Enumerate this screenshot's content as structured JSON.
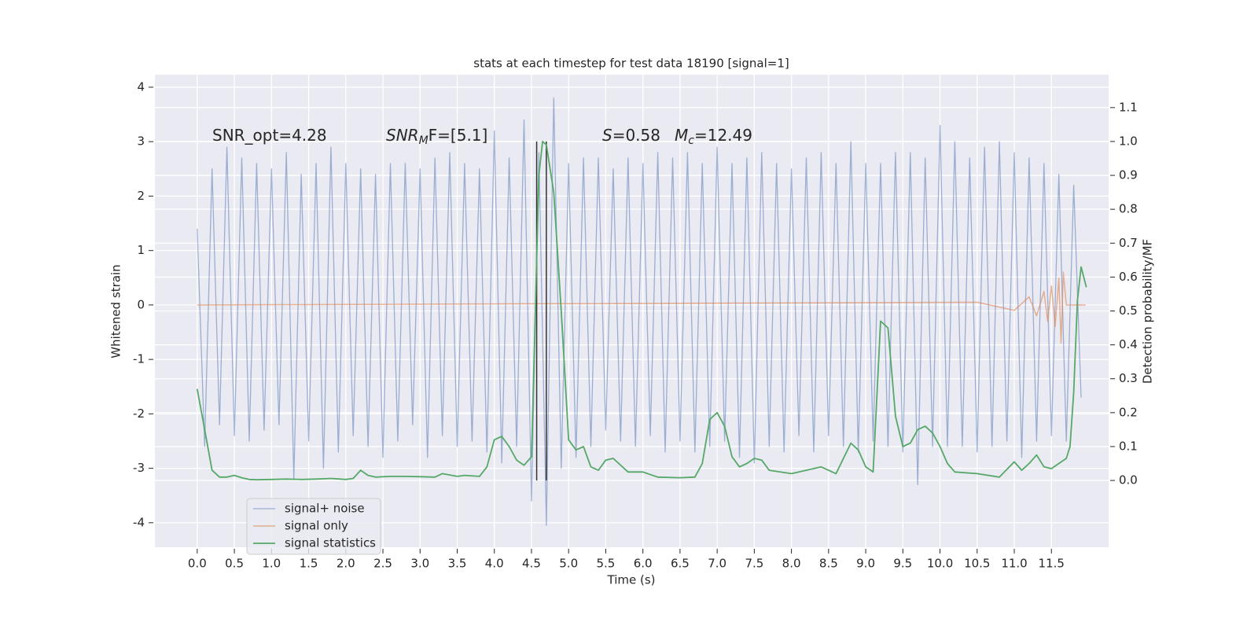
{
  "chart_data": {
    "type": "line",
    "title": "stats at each timestep for test data 18190 [signal=1]",
    "xlabel": "Time (s)",
    "ylabel": "Whitened strain",
    "y2label": "Detection probability/MF",
    "xlim": [
      -0.57,
      12.27
    ],
    "ylim": [
      -4.45,
      4.23
    ],
    "y2lim": [
      -0.197,
      1.197
    ],
    "xticks": [
      {
        "value": 0,
        "label": "0.0"
      },
      0.5,
      {
        "value": 1,
        "label": "1.0"
      },
      1.5,
      {
        "value": 2,
        "label": "2.0"
      },
      2.5,
      {
        "value": 3,
        "label": "3.0"
      },
      3.5,
      {
        "value": 4,
        "label": "4.0"
      },
      4.5,
      {
        "value": 5,
        "label": "5.0"
      },
      5.5,
      {
        "value": 6,
        "label": "6.0"
      },
      6.5,
      {
        "value": 7,
        "label": "7.0"
      },
      7.5,
      {
        "value": 8,
        "label": "8.0"
      },
      8.5,
      {
        "value": 9,
        "label": "9.0"
      },
      9.5,
      {
        "value": 10,
        "label": "10.0"
      },
      10.5,
      {
        "value": 11,
        "label": "11.0"
      },
      11.5
    ],
    "yticks": [
      -4,
      -3,
      -2,
      -1,
      0,
      1,
      2,
      3,
      4
    ],
    "y2ticks": [
      {
        "value": 0,
        "label": "0.0"
      },
      0.1,
      0.2,
      0.3,
      0.4,
      0.5,
      0.6,
      0.7,
      0.8,
      0.9,
      {
        "value": 1,
        "label": "1.0"
      },
      1.1
    ],
    "grid": true,
    "legend": "lower left",
    "annotations": [
      [
        "SNR_opt=4.28"
      ],
      [
        "SNR",
        "M",
        "F=[5.1]"
      ],
      [
        "S",
        "",
        "=0.58"
      ],
      [
        "M",
        "c",
        "=12.49"
      ]
    ],
    "vlines": [
      4.57,
      4.7
    ],
    "vline_range": [
      0,
      1
    ],
    "vline_color": "#333333",
    "series": [
      {
        "name": "signal+ noise",
        "color": "#4c72b0",
        "axis": "y",
        "x": [
          0.0,
          0.1,
          0.2,
          0.3,
          0.4,
          0.5,
          0.6,
          0.7,
          0.8,
          0.9,
          1.0,
          1.1,
          1.2,
          1.3,
          1.4,
          1.5,
          1.6,
          1.7,
          1.8,
          1.9,
          2.0,
          2.1,
          2.2,
          2.3,
          2.4,
          2.5,
          2.6,
          2.7,
          2.8,
          2.9,
          3.0,
          3.1,
          3.2,
          3.3,
          3.4,
          3.5,
          3.6,
          3.7,
          3.8,
          3.9,
          4.0,
          4.1,
          4.2,
          4.3,
          4.4,
          4.5,
          4.6,
          4.7,
          4.8,
          4.9,
          5.0,
          5.1,
          5.2,
          5.3,
          5.4,
          5.5,
          5.6,
          5.7,
          5.8,
          5.9,
          6.0,
          6.1,
          6.2,
          6.3,
          6.4,
          6.5,
          6.6,
          6.7,
          6.8,
          6.9,
          7.0,
          7.1,
          7.2,
          7.3,
          7.4,
          7.5,
          7.6,
          7.7,
          7.8,
          7.9,
          8.0,
          8.1,
          8.2,
          8.3,
          8.4,
          8.5,
          8.6,
          8.7,
          8.8,
          8.9,
          9.0,
          9.1,
          9.2,
          9.3,
          9.4,
          9.5,
          9.6,
          9.7,
          9.8,
          9.9,
          10.0,
          10.1,
          10.2,
          10.3,
          10.4,
          10.5,
          10.6,
          10.7,
          10.8,
          10.9,
          11.0,
          11.1,
          11.2,
          11.3,
          11.4,
          11.5,
          11.6,
          11.7,
          11.8,
          11.9
        ],
        "values": [
          1.4,
          -2.6,
          2.5,
          -2.2,
          2.9,
          -2.4,
          2.7,
          -2.5,
          2.6,
          -2.3,
          2.5,
          -2.2,
          2.8,
          -3.2,
          2.4,
          -2.5,
          2.6,
          -3.0,
          2.9,
          -2.7,
          2.6,
          -2.4,
          2.5,
          -2.6,
          2.4,
          -2.8,
          2.6,
          -2.5,
          2.6,
          -2.2,
          2.5,
          -2.8,
          2.7,
          -2.4,
          2.8,
          -2.6,
          2.6,
          -2.5,
          2.5,
          -2.7,
          3.2,
          -2.9,
          2.7,
          -2.6,
          3.4,
          -3.6,
          2.8,
          -4.05,
          3.8,
          -3.0,
          2.6,
          -2.8,
          2.7,
          -2.6,
          2.7,
          -2.3,
          2.5,
          -2.5,
          2.7,
          -2.6,
          2.6,
          -2.4,
          2.8,
          -2.7,
          2.7,
          -2.5,
          2.8,
          -2.7,
          2.6,
          -2.6,
          2.9,
          -2.5,
          2.6,
          -2.8,
          2.7,
          -2.9,
          2.8,
          -2.6,
          2.6,
          -2.7,
          2.5,
          -2.4,
          2.7,
          -2.7,
          2.8,
          -2.4,
          2.6,
          -2.6,
          3.0,
          -2.7,
          2.6,
          -2.5,
          2.6,
          -2.6,
          2.8,
          -2.7,
          2.8,
          -3.3,
          2.7,
          -2.6,
          3.3,
          -2.6,
          3.0,
          -2.6,
          2.7,
          -2.7,
          2.9,
          -2.6,
          3.0,
          -2.5,
          2.8,
          -2.8,
          2.7,
          -2.5,
          2.6,
          -2.4,
          2.4,
          -2.5,
          2.2,
          -1.7
        ]
      },
      {
        "name": "signal only",
        "color": "#dd8452",
        "axis": "y",
        "x": [
          0,
          10.5,
          11.0,
          11.2,
          11.3,
          11.4,
          11.45,
          11.5,
          11.55,
          11.6,
          11.63,
          11.66,
          11.7,
          11.96
        ],
        "values": [
          0,
          0.05,
          -0.1,
          0.15,
          -0.2,
          0.25,
          -0.3,
          0.35,
          -0.4,
          0.5,
          -0.7,
          0.6,
          0,
          0
        ]
      },
      {
        "name": "signal statistics",
        "color": "#55a868",
        "axis": "y2",
        "x": [
          0.0,
          0.1,
          0.2,
          0.3,
          0.4,
          0.5,
          0.6,
          0.7,
          0.8,
          1.0,
          1.2,
          1.4,
          1.6,
          1.8,
          2.0,
          2.1,
          2.2,
          2.3,
          2.4,
          2.6,
          2.8,
          3.0,
          3.2,
          3.3,
          3.5,
          3.6,
          3.8,
          3.9,
          4.0,
          4.1,
          4.2,
          4.3,
          4.4,
          4.5,
          4.6,
          4.65,
          4.7,
          4.8,
          4.9,
          5.0,
          5.1,
          5.2,
          5.3,
          5.4,
          5.5,
          5.6,
          5.8,
          6.0,
          6.2,
          6.5,
          6.7,
          6.8,
          6.9,
          7.0,
          7.1,
          7.2,
          7.3,
          7.4,
          7.5,
          7.6,
          7.7,
          8.0,
          8.2,
          8.4,
          8.6,
          8.8,
          8.9,
          9.0,
          9.1,
          9.2,
          9.3,
          9.4,
          9.5,
          9.6,
          9.7,
          9.8,
          9.9,
          10.0,
          10.1,
          10.2,
          10.5,
          10.8,
          11.0,
          11.1,
          11.2,
          11.3,
          11.4,
          11.5,
          11.6,
          11.7,
          11.75,
          11.8,
          11.85,
          11.9,
          11.97
        ],
        "values": [
          0.27,
          0.15,
          0.03,
          0.01,
          0.01,
          0.015,
          0.008,
          0.003,
          0.002,
          0.003,
          0.004,
          0.003,
          0.004,
          0.006,
          0.003,
          0.006,
          0.03,
          0.015,
          0.01,
          0.012,
          0.012,
          0.011,
          0.01,
          0.02,
          0.012,
          0.015,
          0.012,
          0.04,
          0.12,
          0.13,
          0.1,
          0.06,
          0.045,
          0.07,
          0.9,
          1.0,
          0.99,
          0.85,
          0.5,
          0.12,
          0.09,
          0.1,
          0.04,
          0.03,
          0.06,
          0.065,
          0.025,
          0.025,
          0.01,
          0.008,
          0.01,
          0.05,
          0.18,
          0.2,
          0.16,
          0.07,
          0.04,
          0.05,
          0.065,
          0.06,
          0.03,
          0.02,
          0.03,
          0.04,
          0.02,
          0.11,
          0.09,
          0.04,
          0.025,
          0.47,
          0.45,
          0.19,
          0.1,
          0.11,
          0.15,
          0.16,
          0.14,
          0.1,
          0.05,
          0.025,
          0.02,
          0.01,
          0.055,
          0.03,
          0.05,
          0.075,
          0.04,
          0.035,
          0.05,
          0.065,
          0.1,
          0.26,
          0.53,
          0.63,
          0.57
        ]
      }
    ]
  }
}
